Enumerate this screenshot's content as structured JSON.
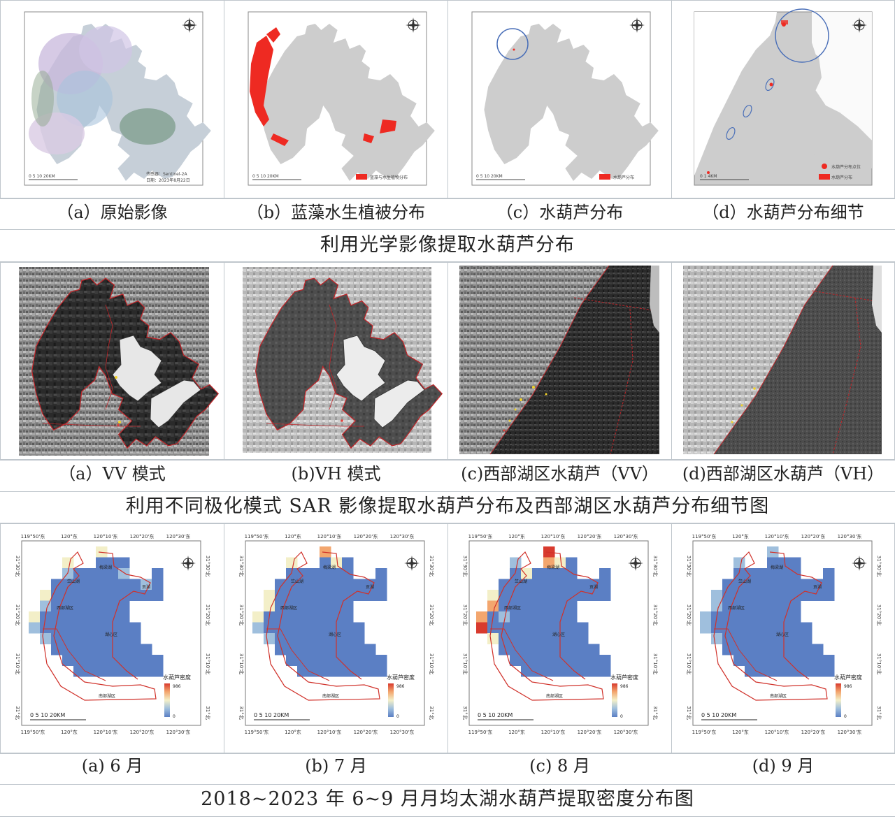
{
  "sections": [
    {
      "title": "利用光学影像提取水葫芦分布",
      "panels": [
        {
          "caption": "（a）原始影像",
          "legend": [
            "传感器：Sentinel-2A",
            "日期：2023年8月22日"
          ],
          "scale": "0  5  10      20KM"
        },
        {
          "caption": "（b）蓝藻水生植被分布",
          "legend": [
            "蓝藻与水生植物分布"
          ],
          "scale": "0  5  10      20KM"
        },
        {
          "caption": "（c）水葫芦分布",
          "legend": [
            "水葫芦分布"
          ],
          "scale": "0  5  10      20KM"
        },
        {
          "caption": "（d）水葫芦分布细节",
          "legend": [
            "水葫芦分布点位",
            "水葫芦分布"
          ],
          "scale": "0    1      4KM"
        }
      ]
    },
    {
      "title": "利用不同极化模式 SAR 影像提取水葫芦分布及西部湖区水葫芦分布细节图",
      "panels": [
        {
          "caption": "（a）VV 模式"
        },
        {
          "caption": "(b)VH 模式"
        },
        {
          "caption": "(c)西部湖区水葫芦（VV）"
        },
        {
          "caption": "(d)西部湖区水葫芦（VH）"
        }
      ]
    },
    {
      "title": "2018~2023 年 6~9 月月均太湖水葫芦提取密度分布图",
      "panels": [
        {
          "caption": "(a) 6 月"
        },
        {
          "caption": "(b) 7 月"
        },
        {
          "caption": "(c) 8 月"
        },
        {
          "caption": "(d) 9 月"
        }
      ],
      "density_map": {
        "lon_labels": [
          "119°50'东",
          "120°东",
          "120°10'东",
          "120°20'东",
          "120°30'东"
        ],
        "lat_labels": [
          "31°30'北",
          "31°20'北",
          "31°10'北",
          "31°北"
        ],
        "legend_title": "水葫芦密度",
        "legend_max": "986",
        "legend_min": "0",
        "scale": "0  5  10      20KM",
        "zones": [
          "竺山湖",
          "梅梁湖",
          "贡湖",
          "西部湖区",
          "湖心区",
          "南部湖区"
        ],
        "ramp_colors": [
          "#5b7fc4",
          "#9fbfdd",
          "#f3efc8",
          "#f3a66e",
          "#d83a2e"
        ]
      }
    }
  ],
  "colors": {
    "bloom_red": "#ee2a22",
    "lake_gray": "#cfcfcf",
    "grid_border": "#bfc6cc"
  }
}
